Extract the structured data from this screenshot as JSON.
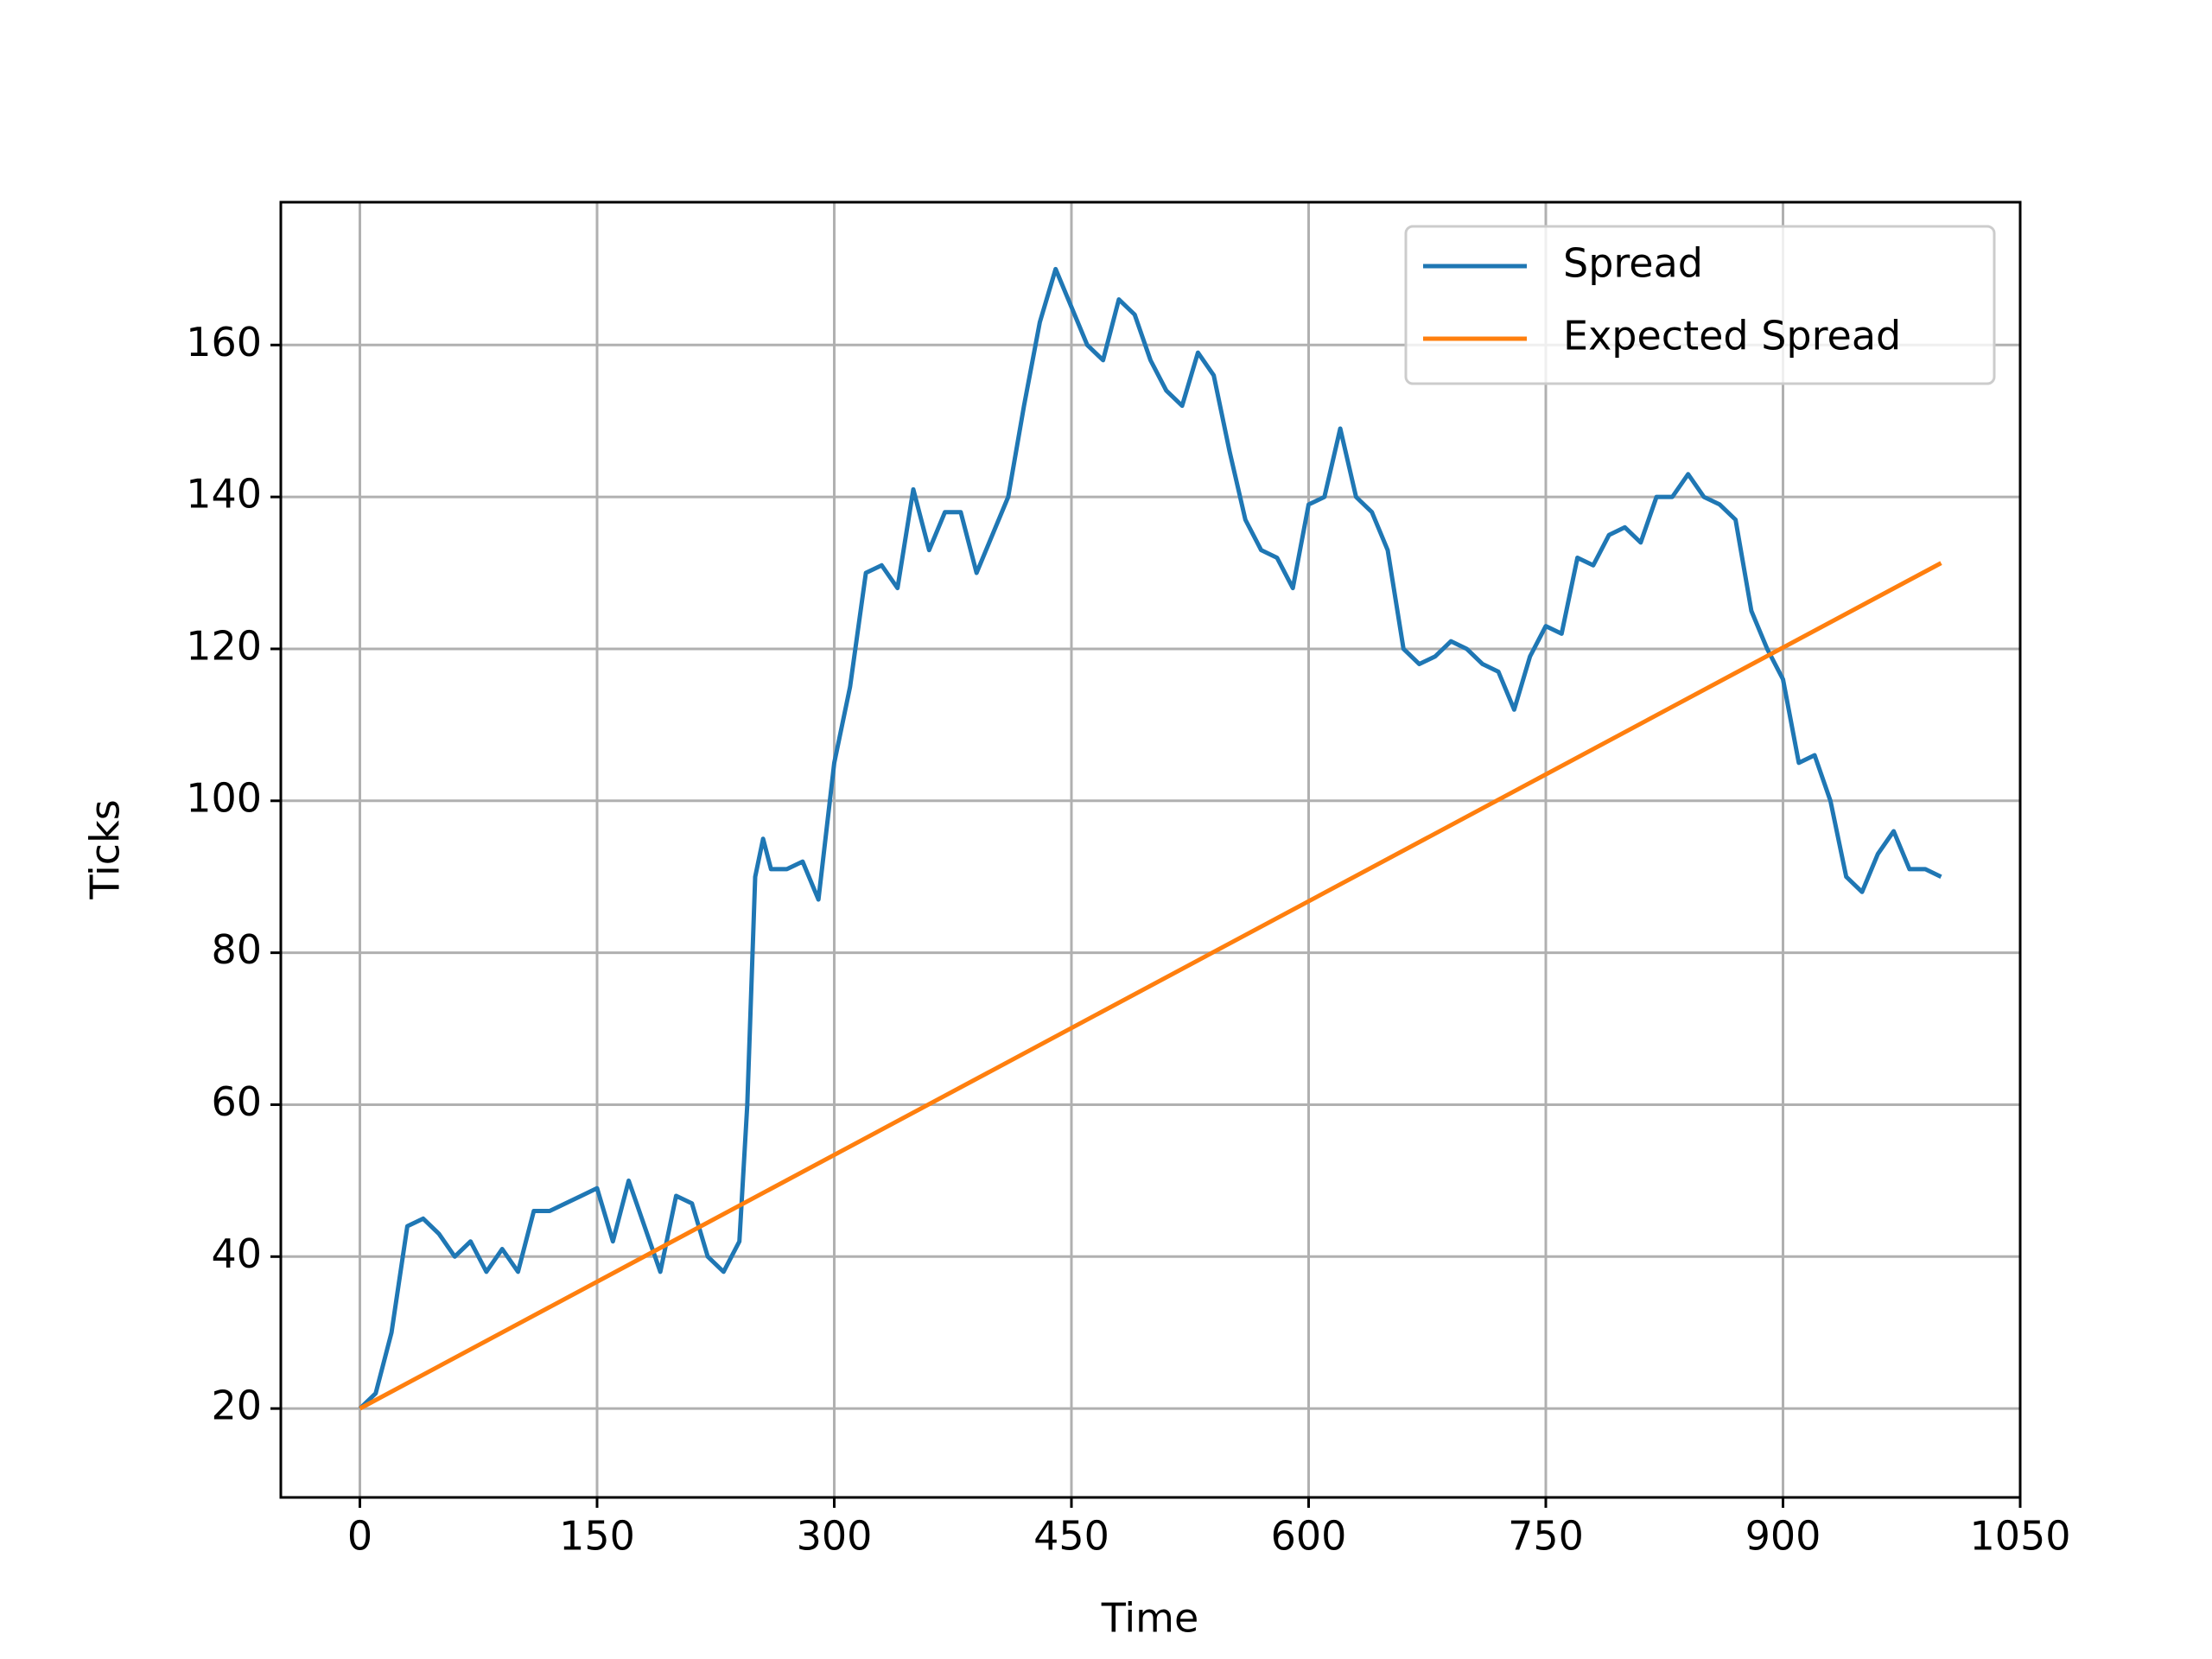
{
  "chart_data": {
    "type": "line",
    "xlabel": "Time",
    "ylabel": "Ticks",
    "xlim": [
      -50,
      1050
    ],
    "ylim": [
      8.3,
      178.8
    ],
    "xticks": [
      0,
      150,
      300,
      450,
      600,
      750,
      900,
      1050
    ],
    "yticks": [
      20,
      40,
      60,
      80,
      100,
      120,
      140,
      160
    ],
    "grid": true,
    "legend": "upper right",
    "series": [
      {
        "name": "Spread",
        "color": "#1f77b4",
        "x": [
          0,
          10,
          20,
          25,
          30,
          40,
          50,
          60,
          70,
          80,
          90,
          100,
          110,
          120,
          130,
          140,
          150,
          160,
          170,
          180,
          190,
          200,
          210,
          220,
          230,
          240,
          245,
          250,
          255,
          260,
          270,
          280,
          290,
          300,
          310,
          320,
          330,
          340,
          350,
          360,
          370,
          380,
          390,
          400,
          410,
          420,
          430,
          440,
          450,
          460,
          470,
          480,
          490,
          500,
          510,
          520,
          530,
          540,
          550,
          560,
          570,
          580,
          590,
          600,
          610,
          620,
          630,
          640,
          650,
          660,
          670,
          680,
          690,
          700,
          710,
          720,
          730,
          740,
          750,
          760,
          770,
          780,
          790,
          800,
          810,
          820,
          830,
          840,
          850,
          860,
          870,
          880,
          890,
          900,
          910,
          920,
          930,
          940,
          950,
          960,
          970,
          980,
          990,
          1000
        ],
        "values": [
          20,
          22,
          30,
          37,
          44,
          45,
          43,
          40,
          42,
          38,
          41,
          38,
          46,
          46,
          47,
          48,
          49,
          42,
          50,
          44,
          38,
          48,
          47,
          40,
          38,
          42,
          60,
          90,
          95,
          91,
          91,
          92,
          87,
          105,
          115,
          130,
          131,
          128,
          141,
          133,
          138,
          138,
          130,
          135,
          140,
          152,
          163,
          170,
          165,
          160,
          158,
          166,
          164,
          158,
          154,
          152,
          159,
          156,
          146,
          137,
          133,
          132,
          128,
          139,
          140,
          149,
          140,
          138,
          133,
          120,
          118,
          119,
          121,
          120,
          118,
          117,
          112,
          119,
          123,
          122,
          132,
          131,
          135,
          136,
          134,
          140,
          140,
          143,
          140,
          139,
          137,
          125,
          120,
          116,
          105,
          106,
          100,
          90,
          88,
          93,
          96,
          91,
          91,
          90
        ]
      },
      {
        "name": "Expected Spread",
        "color": "#ff7f0e",
        "x": [
          0,
          1000
        ],
        "values": [
          20,
          131.3
        ]
      }
    ]
  }
}
